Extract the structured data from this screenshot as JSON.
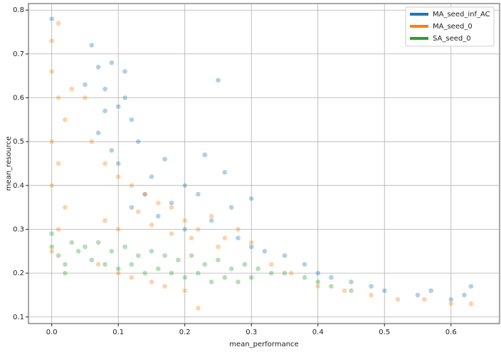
{
  "chart_data": {
    "type": "scatter",
    "x_label": "mean_performance",
    "y_label": "mean_resource",
    "xlim": [
      -0.035,
      0.673
    ],
    "ylim": [
      0.085,
      0.815
    ],
    "xticks": [
      {
        "value": 0.0,
        "label": "0.0"
      },
      0.1,
      0.2,
      0.3,
      0.4,
      0.5,
      0.6
    ],
    "yticks": [
      0.1,
      0.2,
      0.3,
      0.4,
      0.5,
      0.6,
      0.7,
      0.8
    ],
    "grid": true,
    "legend": "upper right",
    "series": [
      {
        "name": "MA_seed_inf_AC",
        "color": "#1f77b4",
        "x": [
          0.0,
          0.06,
          0.07,
          0.08,
          0.09,
          0.1,
          0.11,
          0.12,
          0.07,
          0.08,
          0.09,
          0.1,
          0.13,
          0.15,
          0.17,
          0.2,
          0.22,
          0.25,
          0.23,
          0.27,
          0.12,
          0.14,
          0.16,
          0.18,
          0.2,
          0.24,
          0.28,
          0.3,
          0.32,
          0.35,
          0.38,
          0.4,
          0.42,
          0.45,
          0.48,
          0.5,
          0.55,
          0.57,
          0.6,
          0.62,
          0.63,
          0.26,
          0.3,
          0.05,
          0.11
        ],
        "values": [
          0.78,
          0.72,
          0.67,
          0.62,
          0.68,
          0.58,
          0.66,
          0.55,
          0.52,
          0.57,
          0.48,
          0.45,
          0.5,
          0.42,
          0.46,
          0.4,
          0.38,
          0.64,
          0.47,
          0.35,
          0.35,
          0.38,
          0.33,
          0.36,
          0.3,
          0.32,
          0.28,
          0.26,
          0.25,
          0.24,
          0.22,
          0.2,
          0.19,
          0.18,
          0.17,
          0.16,
          0.15,
          0.16,
          0.14,
          0.15,
          0.17,
          0.43,
          0.37,
          0.63,
          0.6
        ]
      },
      {
        "name": "MA_seed_0",
        "color": "#ff7f0e",
        "x": [
          0.0,
          0.01,
          0.0,
          0.01,
          0.02,
          0.0,
          0.01,
          0.0,
          0.02,
          0.01,
          0.0,
          0.03,
          0.05,
          0.06,
          0.08,
          0.1,
          0.12,
          0.14,
          0.16,
          0.18,
          0.2,
          0.22,
          0.24,
          0.26,
          0.28,
          0.3,
          0.08,
          0.1,
          0.13,
          0.15,
          0.18,
          0.21,
          0.25,
          0.1,
          0.15,
          0.2,
          0.33,
          0.36,
          0.4,
          0.44,
          0.48,
          0.52,
          0.56,
          0.6,
          0.63,
          0.07,
          0.12,
          0.17,
          0.22
        ],
        "values": [
          0.73,
          0.77,
          0.66,
          0.6,
          0.55,
          0.5,
          0.45,
          0.4,
          0.35,
          0.3,
          0.25,
          0.62,
          0.6,
          0.5,
          0.45,
          0.42,
          0.4,
          0.38,
          0.36,
          0.35,
          0.32,
          0.3,
          0.33,
          0.28,
          0.3,
          0.27,
          0.32,
          0.3,
          0.34,
          0.31,
          0.29,
          0.28,
          0.26,
          0.2,
          0.18,
          0.16,
          0.22,
          0.2,
          0.17,
          0.16,
          0.15,
          0.14,
          0.14,
          0.13,
          0.13,
          0.22,
          0.19,
          0.17,
          0.12
        ]
      },
      {
        "name": "SA_seed_0",
        "color": "#2ca02c",
        "x": [
          0.0,
          0.0,
          0.01,
          0.02,
          0.03,
          0.05,
          0.07,
          0.09,
          0.11,
          0.13,
          0.15,
          0.17,
          0.19,
          0.21,
          0.23,
          0.25,
          0.27,
          0.29,
          0.31,
          0.33,
          0.35,
          0.38,
          0.4,
          0.42,
          0.06,
          0.08,
          0.1,
          0.12,
          0.14,
          0.16,
          0.18,
          0.2,
          0.22,
          0.24,
          0.26,
          0.28,
          0.3,
          0.02,
          0.04,
          0.45
        ],
        "values": [
          0.29,
          0.26,
          0.24,
          0.22,
          0.27,
          0.26,
          0.27,
          0.25,
          0.26,
          0.24,
          0.25,
          0.24,
          0.23,
          0.24,
          0.22,
          0.23,
          0.21,
          0.22,
          0.21,
          0.2,
          0.2,
          0.19,
          0.18,
          0.17,
          0.23,
          0.22,
          0.21,
          0.22,
          0.2,
          0.21,
          0.2,
          0.19,
          0.2,
          0.18,
          0.19,
          0.18,
          0.19,
          0.2,
          0.25,
          0.16
        ]
      }
    ]
  }
}
